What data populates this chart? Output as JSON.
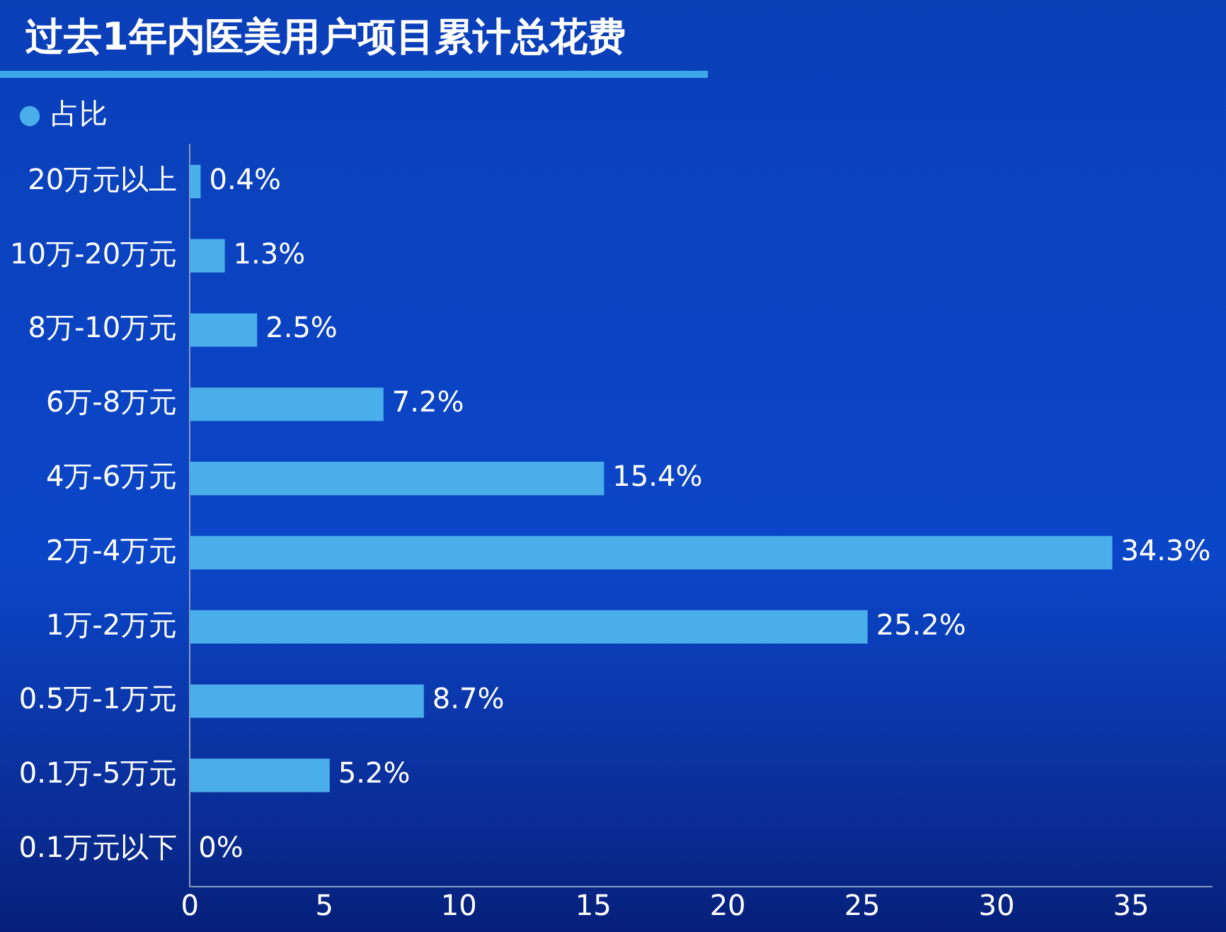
{
  "chart_data": {
    "type": "bar",
    "orientation": "horizontal",
    "title": "过去1年内医美用户项目累计总花费",
    "categories": [
      "20万元以上",
      "10万-20万元",
      "8万-10万元",
      "6万-8万元",
      "4万-6万元",
      "2万-4万元",
      "1万-2万元",
      "0.5万-1万元",
      "0.1万-5万元",
      "0.1万元以下"
    ],
    "series": [
      {
        "name": "占比",
        "color": "#4aaeea",
        "values": [
          0.4,
          1.3,
          2.5,
          7.2,
          15.4,
          34.3,
          25.2,
          8.7,
          5.2,
          0
        ],
        "value_labels": [
          "0.4%",
          "1.3%",
          "2.5%",
          "7.2%",
          "15.4%",
          "34.3%",
          "25.2%",
          "8.7%",
          "5.2%",
          "0%"
        ]
      }
    ],
    "xlim": [
      0,
      38
    ],
    "xticks": [
      0,
      5,
      10,
      15,
      20,
      25,
      30,
      35
    ],
    "grid": false,
    "legend": "top left"
  }
}
